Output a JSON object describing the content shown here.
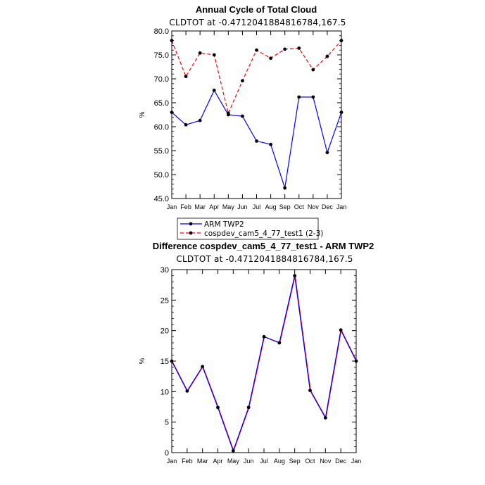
{
  "chart_data": [
    {
      "type": "line",
      "title": "Annual Cycle of Total Cloud",
      "subtitle": "CLDTOT at -0.4712041884816784,167.5",
      "xlabel": "",
      "ylabel": "%",
      "categories": [
        "Jan",
        "Feb",
        "Mar",
        "Apr",
        "May",
        "Jun",
        "Jul",
        "Aug",
        "Sep",
        "Oct",
        "Nov",
        "Dec",
        "Jan"
      ],
      "ylim": [
        45,
        80
      ],
      "yticks": [
        "45.0",
        "50.0",
        "55.0",
        "60.0",
        "65.0",
        "70.0",
        "75.0",
        "80.0"
      ],
      "series": [
        {
          "name": "ARM TWP2",
          "color": "#0000ff",
          "dash": "solid",
          "values": [
            63.0,
            60.4,
            61.3,
            67.6,
            62.5,
            62.2,
            57.0,
            56.3,
            47.2,
            66.2,
            66.2,
            54.6,
            63.0
          ]
        },
        {
          "name": "cospdev_cam5_4_77_test1 (2-3)",
          "color": "#ff0000",
          "dash": "dashed",
          "values": [
            78.0,
            70.5,
            75.4,
            75.0,
            62.8,
            69.6,
            76.0,
            74.3,
            76.2,
            76.4,
            71.9,
            74.7,
            78.0
          ]
        }
      ],
      "legend": "bottom-left"
    },
    {
      "type": "line",
      "title": "Difference cospdev_cam5_4_77_test1 - ARM TWP2",
      "subtitle": "CLDTOT at -0.4712041884816784,167.5",
      "xlabel": "",
      "ylabel": "%",
      "categories": [
        "Jan",
        "Feb",
        "Mar",
        "Apr",
        "May",
        "Jun",
        "Jul",
        "Aug",
        "Sep",
        "Oct",
        "Nov",
        "Dec",
        "Jan"
      ],
      "ylim": [
        0,
        30
      ],
      "yticks": [
        "0",
        "5",
        "10",
        "15",
        "20",
        "25",
        "30"
      ],
      "series": [
        {
          "name": "Difference",
          "color": "#0000ff",
          "overlay_color": "#ff0000",
          "values": [
            15.0,
            10.1,
            14.1,
            7.4,
            0.3,
            7.4,
            19.0,
            18.0,
            29.0,
            10.2,
            5.7,
            20.1,
            15.0
          ]
        }
      ]
    }
  ]
}
